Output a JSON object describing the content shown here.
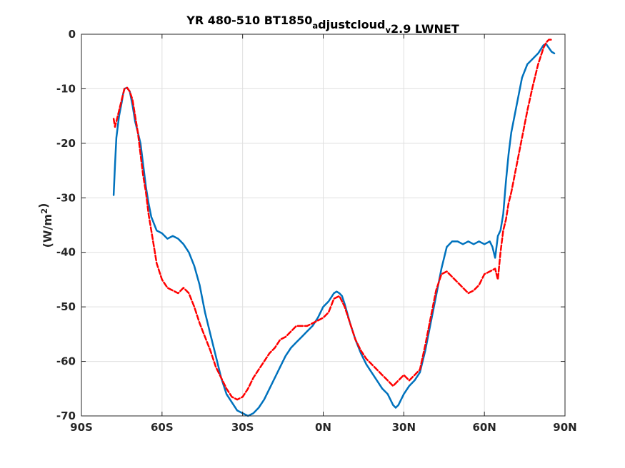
{
  "chart_data": {
    "type": "line",
    "title": {
      "parts": [
        {
          "text": "YR 480-510 BT1850",
          "style": "normal"
        },
        {
          "text": "a",
          "style": "sub"
        },
        {
          "text": "djustcloud",
          "style": "normal"
        },
        {
          "text": "v",
          "style": "sub"
        },
        {
          "text": "2.9 LWNET",
          "style": "normal"
        }
      ]
    },
    "ylabel": {
      "parts": [
        {
          "text": "(W/m",
          "style": "normal"
        },
        {
          "text": "2",
          "style": "sup"
        },
        {
          "text": ")",
          "style": "normal"
        }
      ]
    },
    "xlabel": "",
    "xlim": [
      -90,
      90
    ],
    "ylim": [
      -70,
      0
    ],
    "grid": true,
    "x_ticks": [
      {
        "value": -90,
        "label": "90S"
      },
      {
        "value": -60,
        "label": "60S"
      },
      {
        "value": -30,
        "label": "30S"
      },
      {
        "value": 0,
        "label": "0N"
      },
      {
        "value": 30,
        "label": "30N"
      },
      {
        "value": 60,
        "label": "60N"
      },
      {
        "value": 90,
        "label": "90N"
      }
    ],
    "y_ticks": [
      {
        "value": -70,
        "label": "-70"
      },
      {
        "value": -60,
        "label": "-60"
      },
      {
        "value": -50,
        "label": "-50"
      },
      {
        "value": -40,
        "label": "-40"
      },
      {
        "value": -30,
        "label": "-30"
      },
      {
        "value": -20,
        "label": "-20"
      },
      {
        "value": -10,
        "label": "-10"
      },
      {
        "value": 0,
        "label": "0"
      }
    ],
    "series": [
      {
        "color": "#0072BD",
        "dash": "solid",
        "x": [
          -78,
          -77.5,
          -77,
          -76,
          -75,
          -74.5,
          -74,
          -73,
          -72,
          -71,
          -70,
          -69,
          -68,
          -67,
          -66,
          -65,
          -64,
          -62,
          -60,
          -58,
          -56,
          -54,
          -52,
          -50,
          -48,
          -46,
          -44,
          -42,
          -40,
          -38,
          -36,
          -34,
          -32,
          -30,
          -28,
          -26,
          -24,
          -22,
          -20,
          -18,
          -16,
          -14,
          -12,
          -10,
          -8,
          -6,
          -4,
          -2,
          0,
          2,
          4,
          5,
          6,
          7,
          8,
          10,
          12,
          14,
          16,
          18,
          20,
          22,
          24,
          26,
          27,
          28,
          30,
          32,
          34,
          36,
          38,
          40,
          42,
          44,
          46,
          48,
          50,
          52,
          54,
          56,
          58,
          60,
          62,
          63,
          64,
          65,
          66,
          67,
          68,
          69,
          70,
          72,
          74,
          76,
          78,
          80,
          82,
          83,
          84,
          85,
          86
        ],
        "y": [
          -29.5,
          -24,
          -19,
          -15,
          -12.5,
          -11,
          -10,
          -9.8,
          -10.5,
          -13,
          -16,
          -18,
          -20,
          -24,
          -28,
          -31,
          -33.5,
          -36,
          -36.5,
          -37.5,
          -37,
          -37.5,
          -38.5,
          -40,
          -42.5,
          -46,
          -51,
          -55,
          -59,
          -63,
          -66,
          -67.5,
          -69,
          -69.5,
          -70,
          -69.5,
          -68.5,
          -67,
          -65,
          -63,
          -61,
          -59,
          -57.5,
          -56.5,
          -55.5,
          -54.5,
          -53.5,
          -52,
          -50,
          -49,
          -47.5,
          -47.2,
          -47.5,
          -48,
          -49.5,
          -53,
          -56,
          -58.5,
          -60.5,
          -62,
          -63.5,
          -65,
          -66,
          -68,
          -68.5,
          -68,
          -66,
          -64.5,
          -63.5,
          -62,
          -58,
          -53,
          -48,
          -43,
          -39,
          -38,
          -38,
          -38.5,
          -38,
          -38.5,
          -38,
          -38.5,
          -38,
          -39,
          -41,
          -37,
          -36,
          -33,
          -27,
          -22,
          -18,
          -13,
          -8,
          -5.5,
          -4.5,
          -3.5,
          -2,
          -1.8,
          -2.5,
          -3.2,
          -3.5
        ]
      },
      {
        "color": "#FF0000",
        "dash": "dashed",
        "x": [
          -78,
          -77.5,
          -77,
          -76,
          -75,
          -74.5,
          -74,
          -73,
          -72,
          -71,
          -70,
          -69,
          -68,
          -67,
          -66,
          -65,
          -64,
          -63,
          -62,
          -60,
          -58,
          -56,
          -54,
          -52,
          -50,
          -48,
          -46,
          -44,
          -42,
          -40,
          -38,
          -36,
          -34,
          -32,
          -30,
          -28,
          -26,
          -24,
          -22,
          -20,
          -18,
          -16,
          -14,
          -12,
          -10,
          -8,
          -6,
          -4,
          -2,
          0,
          2,
          4,
          6,
          8,
          10,
          12,
          14,
          16,
          18,
          20,
          22,
          24,
          26,
          28,
          30,
          32,
          34,
          36,
          38,
          40,
          42,
          44,
          46,
          48,
          50,
          52,
          54,
          56,
          58,
          60,
          62,
          64,
          65,
          66,
          67,
          68,
          69,
          70,
          72,
          74,
          76,
          78,
          80,
          82,
          83,
          84,
          85
        ],
        "y": [
          -15.5,
          -17,
          -16,
          -14,
          -12,
          -11,
          -10,
          -9.8,
          -10.5,
          -12,
          -15,
          -18,
          -22,
          -26,
          -29,
          -33,
          -36,
          -39,
          -42,
          -45,
          -46.5,
          -47,
          -47.5,
          -46.5,
          -47.5,
          -50,
          -53,
          -55.5,
          -58,
          -61,
          -63,
          -65,
          -66.5,
          -67,
          -66.5,
          -65,
          -63,
          -61.5,
          -60,
          -58.5,
          -57.5,
          -56,
          -55.5,
          -54.5,
          -53.5,
          -53.5,
          -53.5,
          -53,
          -52.5,
          -52,
          -51,
          -48.5,
          -48,
          -50,
          -53,
          -56,
          -58,
          -59.5,
          -60.5,
          -61.5,
          -62.5,
          -63.5,
          -64.5,
          -63.5,
          -62.5,
          -63.5,
          -62.5,
          -61.5,
          -57,
          -52,
          -47,
          -44,
          -43.5,
          -44.5,
          -45.5,
          -46.5,
          -47.5,
          -47,
          -46,
          -44,
          -43.5,
          -43,
          -45,
          -40,
          -36,
          -34,
          -31,
          -29,
          -24,
          -19,
          -14,
          -9.5,
          -5.5,
          -2.5,
          -1.5,
          -1,
          -1
        ]
      }
    ]
  }
}
